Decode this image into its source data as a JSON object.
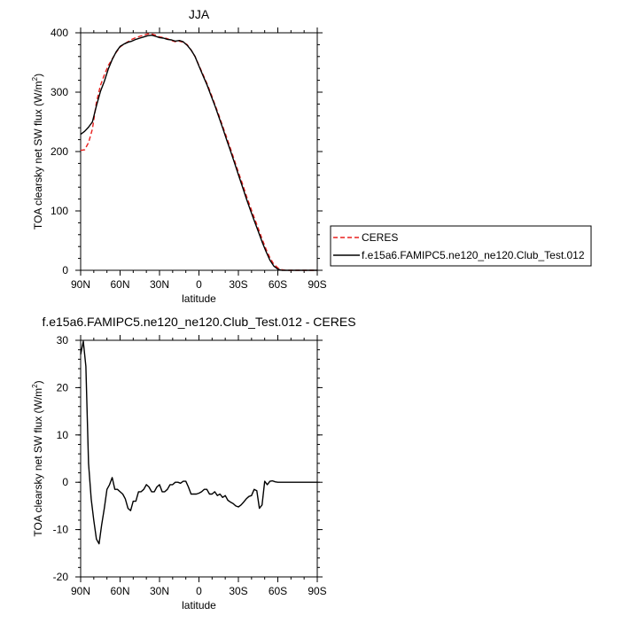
{
  "chart_data": [
    {
      "type": "line",
      "title": "JJA",
      "xlabel": "latitude",
      "ylabel": "TOA clearsky net SW flux (W/m",
      "ylabel_sup": "2",
      "ylabel_close": ")",
      "xlim": [
        90,
        -90
      ],
      "ylim": [
        0,
        400
      ],
      "x_ticks": [
        90,
        60,
        30,
        0,
        -30,
        -60,
        -90
      ],
      "x_tick_labels": [
        "90N",
        "60N",
        "30N",
        "0",
        "30S",
        "60S",
        "90S"
      ],
      "y_ticks": [
        0,
        100,
        200,
        300,
        400
      ],
      "y_tick_labels": [
        "0",
        "100",
        "200",
        "300",
        "400"
      ],
      "grid": false,
      "legend_position": "right, outside the plot",
      "series": [
        {
          "name": "CERES",
          "color": "#e8201e",
          "style": "dashed",
          "x": [
            90,
            87,
            84,
            81,
            78,
            75,
            72,
            69,
            66,
            63,
            60,
            57,
            54,
            51,
            48,
            45,
            42,
            39,
            36,
            33,
            30,
            27,
            24,
            21,
            18,
            15,
            12,
            9,
            6,
            3,
            0,
            -3,
            -6,
            -9,
            -12,
            -15,
            -18,
            -21,
            -24,
            -27,
            -30,
            -33,
            -36,
            -39,
            -42,
            -45,
            -48,
            -51,
            -54,
            -57,
            -60,
            -63,
            -66,
            -69,
            -72,
            -75,
            -78,
            -81,
            -84,
            -87,
            -90
          ],
          "y": [
            202,
            203,
            215,
            238,
            283,
            311,
            329,
            345,
            356,
            367,
            376,
            381,
            385,
            389,
            392,
            394,
            396,
            398,
            398,
            396,
            393,
            392,
            390,
            387,
            385,
            386,
            384,
            380,
            371,
            360,
            345,
            330,
            315,
            298,
            280,
            262,
            243,
            224,
            205,
            185,
            165,
            146,
            126,
            107,
            89,
            71,
            53,
            36,
            21,
            10,
            4,
            1,
            0,
            0,
            0,
            0,
            0,
            0,
            0,
            0,
            0
          ]
        },
        {
          "name": "f.e15a6.FAMIPC5.ne120_ne120.Club_Test.012",
          "color": "#000000",
          "style": "solid",
          "x": [
            90,
            87,
            84,
            81,
            78,
            75,
            72,
            69,
            66,
            63,
            60,
            57,
            54,
            51,
            48,
            45,
            42,
            39,
            36,
            33,
            30,
            27,
            24,
            21,
            18,
            15,
            12,
            9,
            6,
            3,
            0,
            -3,
            -6,
            -9,
            -12,
            -15,
            -18,
            -21,
            -24,
            -27,
            -30,
            -33,
            -36,
            -39,
            -42,
            -45,
            -48,
            -51,
            -54,
            -57,
            -60,
            -63,
            -66,
            -69,
            -72,
            -75,
            -78,
            -81,
            -84,
            -87,
            -90
          ],
          "y": [
            229,
            234,
            241,
            250,
            277,
            301,
            318,
            339,
            355,
            368,
            377,
            381,
            384,
            386,
            389,
            391,
            393,
            395,
            396,
            394,
            392,
            391,
            389,
            388,
            386,
            387,
            385,
            379,
            371,
            360,
            344,
            328,
            313,
            295,
            278,
            259,
            240,
            220,
            201,
            181,
            161,
            141,
            121,
            102,
            84,
            66,
            48,
            32,
            17,
            7,
            2,
            0,
            0,
            0,
            0,
            0,
            0,
            0,
            0,
            0,
            0
          ]
        }
      ]
    },
    {
      "type": "line",
      "title": "f.e15a6.FAMIPC5.ne120_ne120.Club_Test.012 - CERES",
      "xlabel": "latitude",
      "ylabel": "TOA clearsky net SW flux (W/m",
      "ylabel_sup": "2",
      "ylabel_close": ")",
      "xlim": [
        90,
        -90
      ],
      "ylim": [
        -20,
        30
      ],
      "x_ticks": [
        90,
        60,
        30,
        0,
        -30,
        -60,
        -90
      ],
      "x_tick_labels": [
        "90N",
        "60N",
        "30N",
        "0",
        "30S",
        "60S",
        "90S"
      ],
      "y_ticks": [
        -20,
        -10,
        0,
        10,
        20,
        30
      ],
      "y_tick_labels": [
        "-20",
        "-10",
        "0",
        "10",
        "20",
        "30"
      ],
      "grid": false,
      "series": [
        {
          "color": "#000000",
          "style": "solid",
          "x": [
            90,
            88,
            86,
            84,
            82,
            80,
            78,
            76,
            74,
            72,
            70,
            68,
            66,
            64,
            62,
            60,
            58,
            56,
            54,
            52,
            50,
            48,
            46,
            44,
            42,
            40,
            38,
            36,
            34,
            32,
            30,
            28,
            26,
            24,
            22,
            20,
            18,
            16,
            14,
            12,
            10,
            8,
            6,
            4,
            2,
            0,
            -2,
            -4,
            -6,
            -8,
            -10,
            -12,
            -14,
            -16,
            -18,
            -20,
            -22,
            -24,
            -26,
            -28,
            -30,
            -32,
            -34,
            -36,
            -38,
            -40,
            -42,
            -44,
            -46,
            -48,
            -50,
            -52,
            -54,
            -56,
            -58,
            -60,
            -62,
            -64,
            -66,
            -68,
            -70,
            -72,
            -74,
            -76,
            -78,
            -80,
            -82,
            -84,
            -86,
            -88,
            -90
          ],
          "y": [
            27,
            29.8,
            24.5,
            4,
            -3.5,
            -8,
            -12,
            -13,
            -9,
            -5.5,
            -1.5,
            -0.5,
            1,
            -1.5,
            -1.5,
            -2,
            -2.5,
            -3.5,
            -5.5,
            -6,
            -4,
            -4,
            -2,
            -2,
            -1.5,
            -0.5,
            -1,
            -2,
            -2,
            -1,
            -0.5,
            -2,
            -2,
            -1.5,
            -0.5,
            -0.5,
            0,
            0,
            -0.2,
            0.2,
            0.2,
            -1,
            -2.5,
            -2.5,
            -2.5,
            -2.3,
            -2,
            -1.5,
            -1.5,
            -2.5,
            -2.5,
            -2,
            -2.8,
            -2.5,
            -3.2,
            -2.8,
            -3.8,
            -4.2,
            -4.5,
            -5,
            -5.2,
            -4.8,
            -4.2,
            -3.5,
            -3,
            -2.8,
            -1.5,
            -1.8,
            -5.5,
            -4.8,
            0.2,
            -0.5,
            0.2,
            0.3,
            0.1,
            0,
            0,
            0,
            0,
            0,
            0,
            0,
            0,
            0,
            0,
            0,
            0,
            0,
            0,
            0,
            0
          ]
        }
      ]
    }
  ]
}
